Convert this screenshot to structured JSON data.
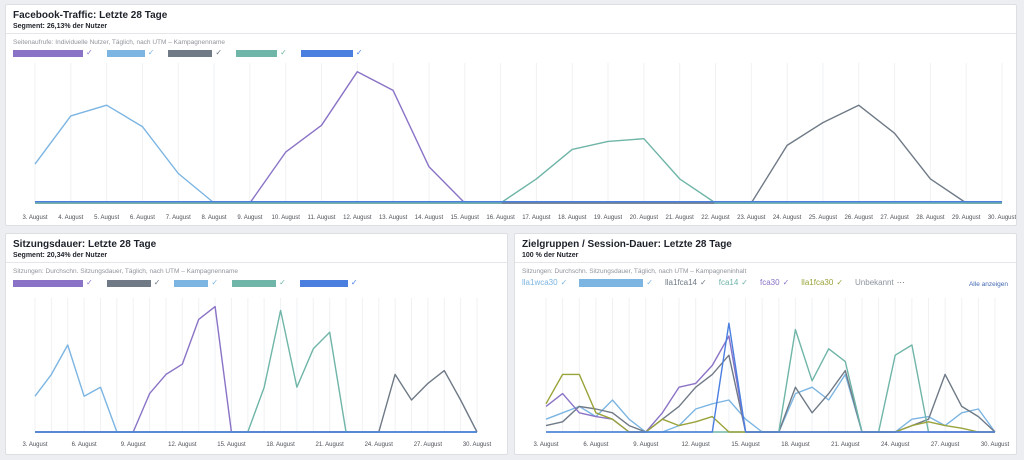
{
  "colors": {
    "purple": "#8a73c6",
    "sky": "#7cb5e2",
    "slate": "#6f7a86",
    "teal": "#6fb5a8",
    "blue": "#4a7fe0",
    "olive": "#9aa33a",
    "grey": "#8d949e"
  },
  "panels": [
    {
      "title": "Facebook-Traffic: Letzte 28 Tage",
      "segment": "Segment: 26,13% der Nutzer",
      "subtitle": "Seitenaufrufe: Individuelle Nutzer, Täglich, nach UTM – Kampagnenname",
      "legend": [
        {
          "color": "purple"
        },
        {
          "color": "sky"
        },
        {
          "color": "slate"
        },
        {
          "color": "teal"
        },
        {
          "color": "blue"
        }
      ]
    },
    {
      "title": "Sitzungsdauer: Letzte 28 Tage",
      "segment": "Segment: 20,34% der Nutzer",
      "subtitle": "Sitzungen: Durchschn. Sitzungsdauer, Täglich, nach UTM – Kampagnenname",
      "legend": [
        {
          "color": "purple"
        },
        {
          "color": "slate"
        },
        {
          "color": "sky"
        },
        {
          "color": "teal"
        },
        {
          "color": "blue"
        }
      ]
    },
    {
      "title": "Zielgruppen / Session-Dauer: Letzte 28 Tage",
      "segment": "100 % der Nutzer",
      "subtitle": "Sitzungen: Durchschn. Sitzungsdauer, Täglich, nach UTM – Kampagneninhalt",
      "legend": [
        {
          "label": "lla1wca30",
          "color": "sky",
          "mark": "✓"
        },
        {
          "label": "",
          "color": "sky",
          "mark": "✓"
        },
        {
          "label": "lla1fca14",
          "color": "slate",
          "mark": "✓"
        },
        {
          "label": "fca14",
          "color": "teal",
          "mark": "✓"
        },
        {
          "label": "fca30",
          "color": "purple",
          "mark": "✓"
        },
        {
          "label": "lla1fca30",
          "color": "olive",
          "mark": "✓"
        },
        {
          "label": "Unbekannt",
          "color": "grey",
          "mark": "···"
        }
      ],
      "show_all": "Alle anzeigen"
    }
  ],
  "chart_data": [
    {
      "type": "line",
      "x": [
        "3. August",
        "4. August",
        "5. August",
        "6. August",
        "7. August",
        "8. August",
        "9. August",
        "10. August",
        "11. August",
        "12. August",
        "13. August",
        "14. August",
        "15. August",
        "16. August",
        "17. August",
        "18. August",
        "19. August",
        "20. August",
        "21. August",
        "22. August",
        "23. August",
        "24. August",
        "25. August",
        "26. August",
        "27. August",
        "28. August",
        "29. August",
        "30. August"
      ],
      "ylim": [
        0,
        100
      ],
      "series": [
        {
          "color": "purple",
          "values": [
            0,
            0,
            0,
            0,
            0,
            0,
            0,
            38,
            58,
            98,
            84,
            27,
            0,
            0,
            0,
            0,
            0,
            0,
            0,
            0,
            0,
            0,
            0,
            0,
            0,
            0,
            0,
            0
          ]
        },
        {
          "color": "sky",
          "values": [
            29,
            65,
            73,
            57,
            22,
            0,
            0,
            0,
            0,
            0,
            0,
            0,
            0,
            0,
            0,
            0,
            0,
            0,
            0,
            0,
            0,
            0,
            0,
            0,
            0,
            0,
            0,
            0
          ]
        },
        {
          "color": "slate",
          "values": [
            0,
            0,
            0,
            0,
            0,
            0,
            0,
            0,
            0,
            0,
            0,
            0,
            0,
            0,
            0,
            0,
            0,
            0,
            0,
            0,
            0,
            43,
            60,
            73,
            52,
            18,
            0,
            0
          ]
        },
        {
          "color": "teal",
          "values": [
            0,
            0,
            0,
            0,
            0,
            0,
            0,
            0,
            0,
            0,
            0,
            0,
            0,
            0,
            18,
            40,
            46,
            48,
            18,
            0,
            0,
            0,
            0,
            0,
            0,
            0,
            0,
            0
          ]
        },
        {
          "color": "blue",
          "values": [
            1,
            1,
            1,
            1,
            1,
            1,
            1,
            1,
            1,
            1,
            1,
            1,
            1,
            1,
            1,
            1,
            1,
            1,
            1,
            1,
            1,
            1,
            1,
            1,
            1,
            1,
            1,
            1
          ]
        }
      ]
    },
    {
      "type": "line",
      "x": [
        "3. August",
        "4. August",
        "5. August",
        "6. August",
        "7. August",
        "8. August",
        "9. August",
        "10. August",
        "11. August",
        "12. August",
        "13. August",
        "14. August",
        "15. August",
        "16. August",
        "17. August",
        "18. August",
        "19. August",
        "20. August",
        "21. August",
        "22. August",
        "23. August",
        "24. August",
        "25. August",
        "26. August",
        "27. August",
        "28. August",
        "29. August",
        "30. August"
      ],
      "tick_labels": [
        "3. August",
        "",
        "",
        "6. August",
        "",
        "",
        "9. August",
        "",
        "",
        "12. August",
        "",
        "",
        "15. August",
        "",
        "",
        "18. August",
        "",
        "",
        "21. August",
        "",
        "",
        "24. August",
        "",
        "",
        "27. August",
        "",
        "",
        "30. August"
      ],
      "ylim": [
        0,
        100
      ],
      "series": [
        {
          "color": "purple",
          "values": [
            0,
            0,
            0,
            0,
            0,
            0,
            0,
            30,
            45,
            53,
            88,
            98,
            0,
            0,
            0,
            0,
            0,
            0,
            0,
            0,
            0,
            0,
            0,
            0,
            0,
            0,
            0,
            0
          ]
        },
        {
          "color": "sky",
          "values": [
            28,
            45,
            68,
            28,
            35,
            0,
            0,
            0,
            0,
            0,
            0,
            0,
            0,
            0,
            0,
            0,
            0,
            0,
            0,
            0,
            0,
            0,
            0,
            0,
            0,
            0,
            0,
            0
          ]
        },
        {
          "color": "slate",
          "values": [
            0,
            0,
            0,
            0,
            0,
            0,
            0,
            0,
            0,
            0,
            0,
            0,
            0,
            0,
            0,
            0,
            0,
            0,
            0,
            0,
            0,
            0,
            45,
            25,
            38,
            48,
            25,
            0
          ]
        },
        {
          "color": "teal",
          "values": [
            0,
            0,
            0,
            0,
            0,
            0,
            0,
            0,
            0,
            0,
            0,
            0,
            0,
            0,
            35,
            95,
            35,
            65,
            78,
            0,
            0,
            0,
            0,
            0,
            0,
            0,
            0,
            0
          ]
        },
        {
          "color": "blue",
          "values": [
            0,
            0,
            0,
            0,
            0,
            0,
            0,
            0,
            0,
            0,
            0,
            0,
            0,
            0,
            0,
            0,
            0,
            0,
            0,
            0,
            0,
            0,
            0,
            0,
            0,
            0,
            0,
            0
          ]
        }
      ]
    },
    {
      "type": "line",
      "x": [
        "3. August",
        "4. August",
        "5. August",
        "6. August",
        "7. August",
        "8. August",
        "9. August",
        "10. August",
        "11. August",
        "12. August",
        "13. August",
        "14. August",
        "15. August",
        "16. August",
        "17. August",
        "18. August",
        "19. August",
        "20. August",
        "21. August",
        "22. August",
        "23. August",
        "24. August",
        "25. August",
        "26. August",
        "27. August",
        "28. August",
        "29. August",
        "30. August"
      ],
      "tick_labels": [
        "3. August",
        "",
        "",
        "6. August",
        "",
        "",
        "9. August",
        "",
        "",
        "12. August",
        "",
        "",
        "15. August",
        "",
        "",
        "18. August",
        "",
        "",
        "21. August",
        "",
        "",
        "24. August",
        "",
        "",
        "27. August",
        "",
        "",
        "30. August"
      ],
      "ylim": [
        0,
        100
      ],
      "series": [
        {
          "color": "sky",
          "values": [
            10,
            15,
            20,
            12,
            25,
            10,
            0,
            0,
            5,
            18,
            22,
            25,
            10,
            0,
            0,
            30,
            35,
            25,
            45,
            0,
            0,
            0,
            10,
            12,
            5,
            15,
            18,
            0
          ]
        },
        {
          "color": "slate",
          "values": [
            5,
            8,
            20,
            18,
            15,
            5,
            0,
            10,
            20,
            35,
            45,
            60,
            0,
            0,
            0,
            35,
            15,
            30,
            48,
            0,
            0,
            0,
            5,
            10,
            45,
            20,
            12,
            0
          ]
        },
        {
          "color": "teal",
          "values": [
            0,
            0,
            0,
            0,
            0,
            0,
            0,
            0,
            0,
            0,
            0,
            0,
            0,
            0,
            0,
            80,
            40,
            65,
            55,
            0,
            0,
            60,
            68,
            0,
            0,
            0,
            0,
            0
          ]
        },
        {
          "color": "purple",
          "values": [
            20,
            30,
            15,
            12,
            10,
            0,
            0,
            15,
            35,
            38,
            52,
            75,
            0,
            0,
            0,
            0,
            0,
            0,
            0,
            0,
            0,
            0,
            0,
            0,
            0,
            0,
            0,
            0
          ]
        },
        {
          "color": "olive",
          "values": [
            22,
            45,
            45,
            15,
            10,
            0,
            0,
            10,
            5,
            8,
            12,
            0,
            0,
            0,
            0,
            0,
            0,
            0,
            0,
            0,
            0,
            0,
            5,
            8,
            5,
            3,
            0,
            0
          ]
        },
        {
          "color": "blue",
          "values": [
            0,
            0,
            0,
            0,
            0,
            0,
            0,
            0,
            0,
            0,
            0,
            85,
            0,
            0,
            0,
            0,
            0,
            0,
            0,
            0,
            0,
            0,
            0,
            0,
            0,
            0,
            0,
            0
          ]
        }
      ]
    }
  ]
}
